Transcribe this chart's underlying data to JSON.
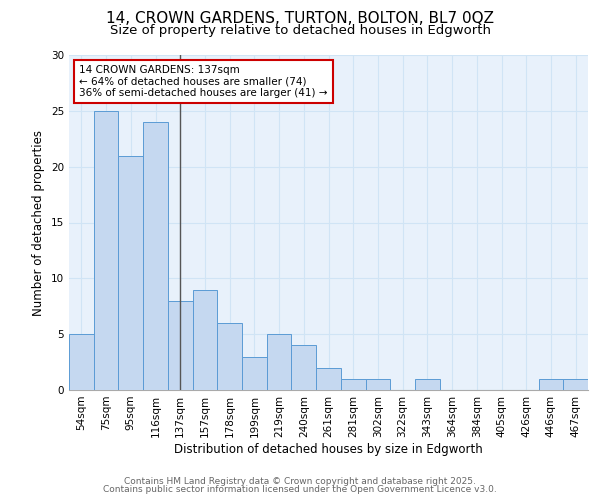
{
  "title_line1": "14, CROWN GARDENS, TURTON, BOLTON, BL7 0QZ",
  "title_line2": "Size of property relative to detached houses in Edgworth",
  "xlabel": "Distribution of detached houses by size in Edgworth",
  "ylabel": "Number of detached properties",
  "categories": [
    "54sqm",
    "75sqm",
    "95sqm",
    "116sqm",
    "137sqm",
    "157sqm",
    "178sqm",
    "199sqm",
    "219sqm",
    "240sqm",
    "261sqm",
    "281sqm",
    "302sqm",
    "322sqm",
    "343sqm",
    "364sqm",
    "384sqm",
    "405sqm",
    "426sqm",
    "446sqm",
    "467sqm"
  ],
  "values": [
    5,
    25,
    21,
    24,
    8,
    9,
    6,
    3,
    5,
    4,
    2,
    1,
    1,
    0,
    1,
    0,
    0,
    0,
    0,
    1,
    1
  ],
  "bar_color": "#c5d8f0",
  "bar_edge_color": "#5b9bd5",
  "marker_index": 4,
  "annotation_line1": "14 CROWN GARDENS: 137sqm",
  "annotation_line2": "← 64% of detached houses are smaller (74)",
  "annotation_line3": "36% of semi-detached houses are larger (41) →",
  "annotation_box_color": "#cc0000",
  "vline_color": "#555555",
  "ylim": [
    0,
    30
  ],
  "yticks": [
    0,
    5,
    10,
    15,
    20,
    25,
    30
  ],
  "grid_color": "#d0e4f5",
  "bg_color": "#e8f1fb",
  "footer_line1": "Contains HM Land Registry data © Crown copyright and database right 2025.",
  "footer_line2": "Contains public sector information licensed under the Open Government Licence v3.0.",
  "title_fontsize": 11,
  "subtitle_fontsize": 9.5,
  "axis_label_fontsize": 8.5,
  "tick_fontsize": 7.5,
  "annotation_fontsize": 7.5,
  "footer_fontsize": 6.5
}
